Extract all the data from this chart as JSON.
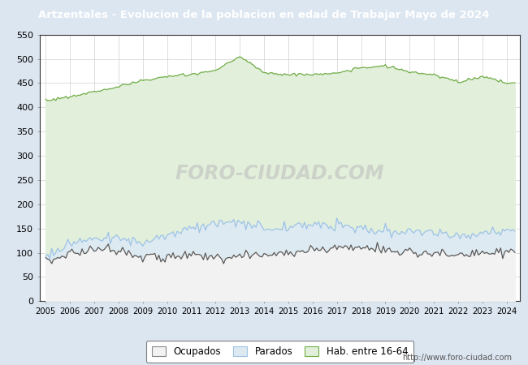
{
  "title": "Artzentales - Evolucion de la poblacion en edad de Trabajar Mayo de 2024",
  "ylim": [
    0,
    550
  ],
  "yticks": [
    0,
    50,
    100,
    150,
    200,
    250,
    300,
    350,
    400,
    450,
    500,
    550
  ],
  "title_bg_color": "#4472c4",
  "title_text_color": "#ffffff",
  "outer_bg_color": "#dce6f1",
  "plot_bg_color": "#ffffff",
  "watermark": "FORO-CIUDAD.COM",
  "url": "http://www.foro-ciudad.com",
  "green_line_color": "#70ad47",
  "blue_line_color": "#9dc3e6",
  "dark_line_color": "#595959",
  "fill_green_color": "#e2efda",
  "fill_blue_color": "#deeaf1",
  "fill_ocupados_color": "#f2f2f2",
  "legend_box_bg": "#ffffff",
  "legend_box_edge": "#7f7f7f"
}
